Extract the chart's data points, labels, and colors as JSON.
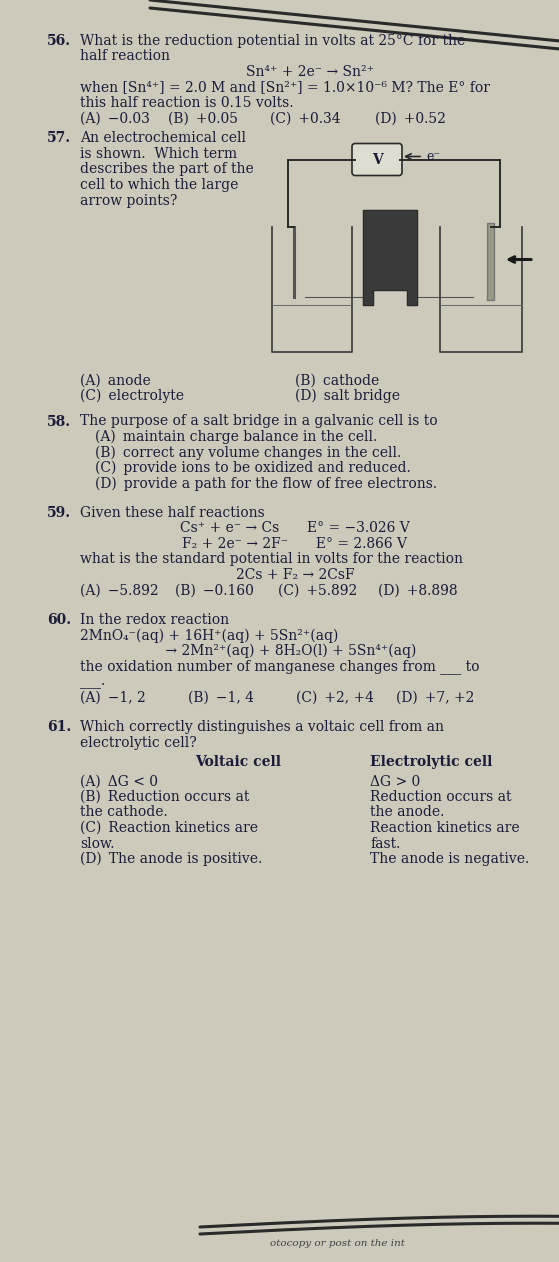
{
  "bg_color": "#cdc9bb",
  "text_color": "#1c1c3a",
  "font_family": "DejaVu Serif",
  "q56_num": "56.",
  "q56_line1": "What is the reduction potential in volts at 25°C for the",
  "q56_line2": "half reaction",
  "q56_reaction": "Sn⁴⁺ + 2e⁻ → Sn²⁺",
  "q56_line3": "when [Sn⁴⁺] = 2.0 M and [Sn²⁺] = 1.0×10⁻⁶ M? The E° for",
  "q56_line4": "this half reaction is 0.15 volts.",
  "q56_choices": [
    "(A) −0.03",
    "(B) +0.05",
    "(C) +0.34",
    "(D) +0.52"
  ],
  "q57_num": "57.",
  "q57_text": [
    "An electrochemical cell",
    "is shown.  Which term",
    "describes the part of the",
    "cell to which the large",
    "arrow points?"
  ],
  "q57_choices_left": [
    "(A) anode",
    "(C) electrolyte"
  ],
  "q57_choices_right": [
    "(B) cathode",
    "(D) salt bridge"
  ],
  "q58_num": "58.",
  "q58_lead": "The purpose of a salt bridge in a galvanic cell is to",
  "q58_choices": [
    "(A) maintain charge balance in the cell.",
    "(B) correct any volume changes in the cell.",
    "(C) provide ions to be oxidized and reduced.",
    "(D) provide a path for the flow of free electrons."
  ],
  "q59_num": "59.",
  "q59_lead": "Given these half reactions",
  "q59_rxn1": "Cs⁺ + e⁻ → Cs  E° = −3.026 V",
  "q59_rxn2": "F₂ + 2e⁻ → 2F⁻  E° = 2.866 V",
  "q59_mid": "what is the standard potential in volts for the reaction",
  "q59_rxn3": "2Cs + F₂ → 2CsF",
  "q59_choices": [
    "(A) −5.892",
    "(B) −0.160",
    "(C) +5.892",
    "(D) +8.898"
  ],
  "q60_num": "60.",
  "q60_lead": "In the redox reaction",
  "q60_rxn1": "2MnO₄⁻(aq) + 16H⁺(aq) + 5Sn²⁺(aq)",
  "q60_rxn2": "    → 2Mn²⁺(aq) + 8H₂O(l) + 5Sn⁴⁺(aq)",
  "q60_line3": "the oxidation number of manganese changes from ___ to",
  "q60_line4": "___.",
  "q60_choices": [
    "(A) −1, 2",
    "(B) −1, 4",
    "(C) +2, +4",
    "(D) +7, +2"
  ],
  "q61_num": "61.",
  "q61_lead1": "Which correctly distinguishes a voltaic cell from an",
  "q61_lead2": "electrolytic cell?",
  "q61_hdr_left": "Voltaic cell",
  "q61_hdr_right": "Electrolytic cell",
  "q61_rows": [
    [
      "(A) ΔG < 0",
      "ΔG > 0"
    ],
    [
      "(B) Reduction occurs at\nthe cathode.",
      "Reduction occurs at\nthe anode."
    ],
    [
      "(C) Reaction kinetics are\nslow.",
      "Reaction kinetics are\nfast."
    ],
    [
      "(D) The anode is positive.",
      "The anode is negative."
    ]
  ],
  "bottom_text": "otocopy or post on the int"
}
